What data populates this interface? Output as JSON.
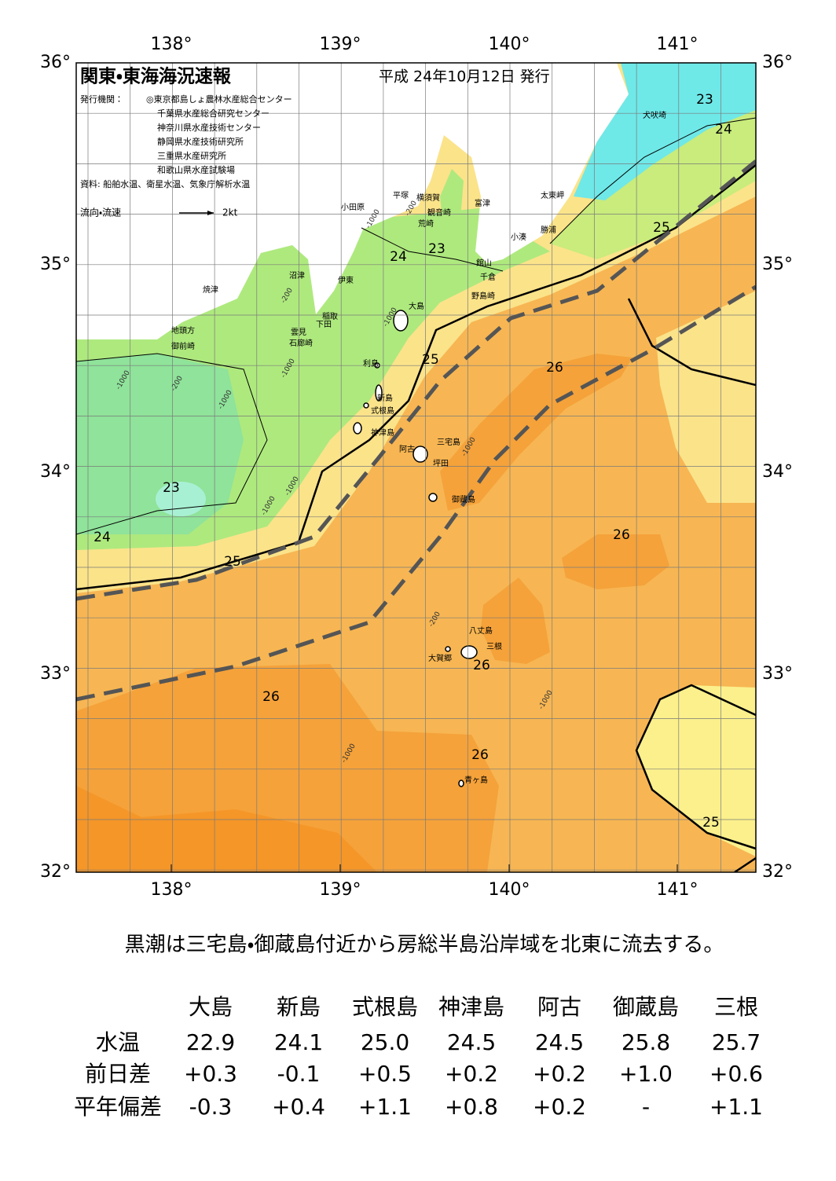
{
  "header": {
    "title": "関東・東海海況速報",
    "date": "平成 24年10月12日 発行",
    "issuer_label": "発行機関：",
    "issuers": [
      "◎東京都島しょ農林水産総合センター",
      "千葉県水産総合研究センター",
      "神奈川県水産技術センター",
      "静岡県水産技術研究所",
      "三重県水産研究所",
      "和歌山県水産試験場"
    ],
    "source": "資料: 船舶水温、衛星水温、気象庁解析水温",
    "legend": {
      "label": "流向・流速",
      "scale": "2kt"
    }
  },
  "map": {
    "lon_labels": [
      "138°",
      "139°",
      "140°",
      "141°"
    ],
    "lat_labels": [
      "36°",
      "35°",
      "34°",
      "33°",
      "32°"
    ],
    "places": [
      "犬吠埼",
      "太東岬",
      "勝浦",
      "小湊",
      "富津",
      "横須賀",
      "観音崎",
      "荒崎",
      "平塚",
      "小田原",
      "館山",
      "千倉",
      "野島崎",
      "大島",
      "沼津",
      "伊東",
      "焼津",
      "稲取",
      "下田",
      "雲見",
      "石廊崎",
      "地頭方",
      "御前崎",
      "利島",
      "新島",
      "式根島",
      "神津島",
      "三宅島",
      "阿古",
      "坪田",
      "御蔵島",
      "八丈島",
      "三根",
      "大賀郷",
      "青ヶ島"
    ],
    "isotherm_labels": [
      "23",
      "24",
      "25",
      "24",
      "23",
      "25",
      "26",
      "23",
      "24",
      "25",
      "26",
      "26",
      "26",
      "26",
      "25"
    ],
    "depth_labels": [
      "-200",
      "-1000",
      "-200",
      "-1000",
      "-1000",
      "-200",
      "-1000",
      "-1000",
      "-1000",
      "-1000",
      "-1000",
      "-200",
      "-1000",
      "-1000"
    ]
  },
  "summary": "黒潮は三宅島・御蔵島付近から房総半島沿岸域を北東に流去する。",
  "table": {
    "columns": [
      "大島",
      "新島",
      "式根島",
      "神津島",
      "阿古",
      "御蔵島",
      "三根"
    ],
    "rows": [
      {
        "label": "水温",
        "values": [
          "22.9",
          "24.1",
          "25.0",
          "24.5",
          "24.5",
          "25.8",
          "25.7"
        ]
      },
      {
        "label": "前日差",
        "values": [
          "+0.3",
          "-0.1",
          "+0.5",
          "+0.2",
          "+0.2",
          "+1.0",
          "+0.6"
        ]
      },
      {
        "label": "平年偏差",
        "values": [
          "-0.3",
          "+0.4",
          "+1.1",
          "+0.8",
          "+0.2",
          "-",
          "+1.1"
        ]
      }
    ]
  }
}
